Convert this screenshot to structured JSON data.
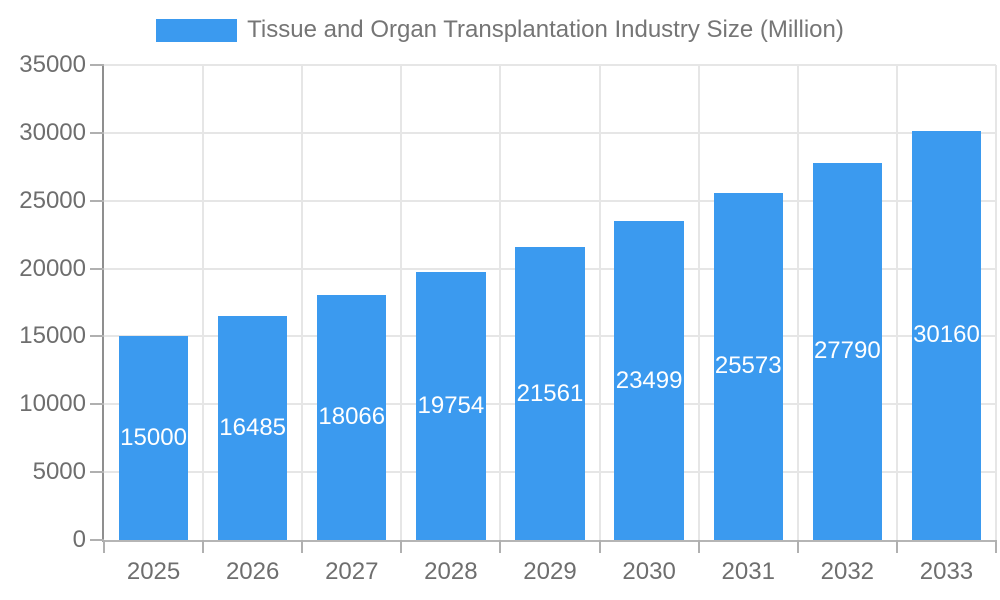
{
  "chart_data": {
    "type": "bar",
    "title": "Tissue and Organ Transplantation Industry Size (Million)",
    "categories": [
      "2025",
      "2026",
      "2027",
      "2028",
      "2029",
      "2030",
      "2031",
      "2032",
      "2033"
    ],
    "series": [
      {
        "name": "Tissue and Organ Transplantation Industry Size (Million)",
        "values": [
          15000,
          16485,
          18066,
          19754,
          21561,
          23499,
          25573,
          27790,
          30160
        ]
      }
    ],
    "xlabel": "",
    "ylabel": "",
    "ylim": [
      0,
      35000
    ],
    "yticks": [
      0,
      5000,
      10000,
      15000,
      20000,
      25000,
      30000,
      35000
    ],
    "grid": true,
    "legend_position": "top",
    "value_label_position": "inside-center"
  },
  "colors": {
    "bar": "#3b9aef",
    "value_label": "#ffffff",
    "axis_label": "#6e6e6e",
    "title": "#757575",
    "gridline": "#e6e6e6",
    "axis_line_y": "#8f8f8f",
    "axis_line_x": "#b5b5b5",
    "tick": "#b0b0b0",
    "background": "#ffffff"
  }
}
